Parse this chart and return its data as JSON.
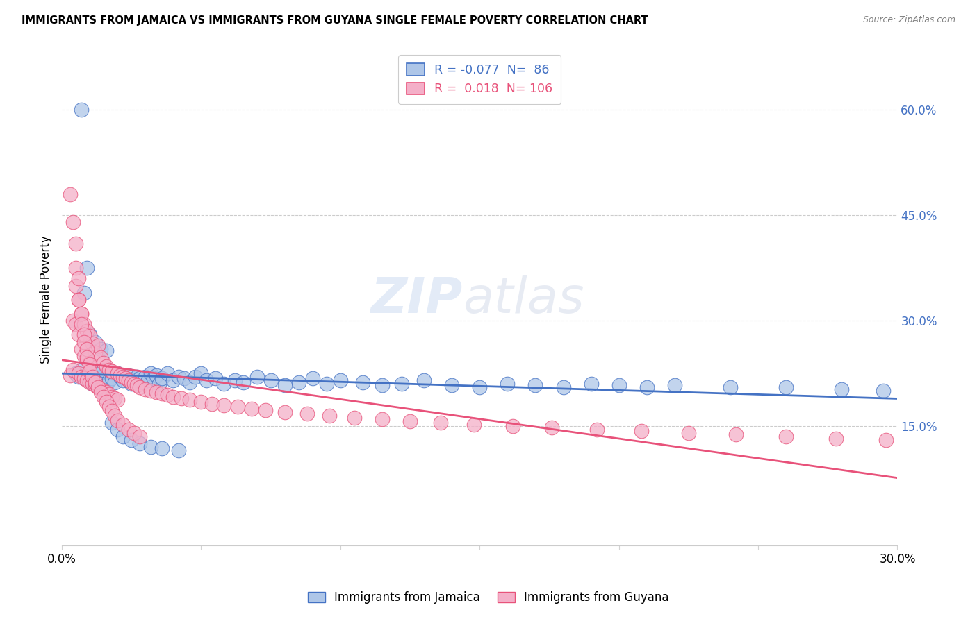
{
  "title": "IMMIGRANTS FROM JAMAICA VS IMMIGRANTS FROM GUYANA SINGLE FEMALE POVERTY CORRELATION CHART",
  "source": "Source: ZipAtlas.com",
  "ylabel": "Single Female Poverty",
  "right_yticks": [
    "60.0%",
    "45.0%",
    "30.0%",
    "15.0%"
  ],
  "right_ytick_vals": [
    0.6,
    0.45,
    0.3,
    0.15
  ],
  "xlim": [
    0.0,
    0.3
  ],
  "ylim": [
    -0.02,
    0.68
  ],
  "legend_jamaica": "Immigrants from Jamaica",
  "legend_guyana": "Immigrants from Guyana",
  "R_jamaica": "-0.077",
  "N_jamaica": "86",
  "R_guyana": "0.018",
  "N_guyana": "106",
  "color_jamaica": "#aec6e8",
  "color_guyana": "#f4afc8",
  "line_jamaica": "#4472c4",
  "line_guyana": "#e8527a",
  "watermark_zip": "ZIP",
  "watermark_atlas": "atlas",
  "jamaica_x": [
    0.005,
    0.006,
    0.007,
    0.008,
    0.009,
    0.01,
    0.01,
    0.011,
    0.012,
    0.012,
    0.013,
    0.014,
    0.015,
    0.015,
    0.016,
    0.017,
    0.018,
    0.019,
    0.02,
    0.021,
    0.022,
    0.023,
    0.024,
    0.025,
    0.026,
    0.027,
    0.028,
    0.029,
    0.03,
    0.031,
    0.032,
    0.033,
    0.034,
    0.035,
    0.036,
    0.038,
    0.04,
    0.042,
    0.044,
    0.046,
    0.048,
    0.05,
    0.052,
    0.055,
    0.058,
    0.062,
    0.065,
    0.07,
    0.075,
    0.08,
    0.085,
    0.09,
    0.095,
    0.1,
    0.108,
    0.115,
    0.122,
    0.13,
    0.14,
    0.15,
    0.16,
    0.17,
    0.18,
    0.19,
    0.2,
    0.21,
    0.22,
    0.24,
    0.26,
    0.28,
    0.295,
    0.007,
    0.008,
    0.009,
    0.01,
    0.012,
    0.014,
    0.016,
    0.018,
    0.02,
    0.022,
    0.025,
    0.028,
    0.032,
    0.036,
    0.042
  ],
  "jamaica_y": [
    0.225,
    0.22,
    0.23,
    0.218,
    0.222,
    0.215,
    0.228,
    0.21,
    0.22,
    0.225,
    0.218,
    0.212,
    0.222,
    0.23,
    0.208,
    0.215,
    0.218,
    0.212,
    0.225,
    0.22,
    0.215,
    0.218,
    0.222,
    0.21,
    0.215,
    0.22,
    0.218,
    0.212,
    0.22,
    0.215,
    0.225,
    0.218,
    0.222,
    0.21,
    0.218,
    0.225,
    0.215,
    0.22,
    0.218,
    0.212,
    0.22,
    0.225,
    0.215,
    0.218,
    0.21,
    0.215,
    0.212,
    0.22,
    0.215,
    0.208,
    0.212,
    0.218,
    0.21,
    0.215,
    0.212,
    0.208,
    0.21,
    0.215,
    0.208,
    0.205,
    0.21,
    0.208,
    0.205,
    0.21,
    0.208,
    0.205,
    0.208,
    0.205,
    0.205,
    0.202,
    0.2,
    0.6,
    0.34,
    0.375,
    0.28,
    0.27,
    0.26,
    0.258,
    0.155,
    0.145,
    0.135,
    0.13,
    0.125,
    0.12,
    0.118,
    0.115
  ],
  "guyana_x": [
    0.003,
    0.004,
    0.004,
    0.005,
    0.005,
    0.006,
    0.006,
    0.006,
    0.007,
    0.007,
    0.007,
    0.008,
    0.008,
    0.008,
    0.009,
    0.009,
    0.009,
    0.01,
    0.01,
    0.01,
    0.011,
    0.011,
    0.012,
    0.012,
    0.013,
    0.013,
    0.014,
    0.014,
    0.015,
    0.015,
    0.016,
    0.016,
    0.017,
    0.017,
    0.018,
    0.018,
    0.019,
    0.02,
    0.02,
    0.021,
    0.022,
    0.023,
    0.024,
    0.025,
    0.026,
    0.027,
    0.028,
    0.03,
    0.032,
    0.034,
    0.036,
    0.038,
    0.04,
    0.043,
    0.046,
    0.05,
    0.054,
    0.058,
    0.063,
    0.068,
    0.073,
    0.08,
    0.088,
    0.096,
    0.105,
    0.115,
    0.125,
    0.136,
    0.148,
    0.162,
    0.176,
    0.192,
    0.208,
    0.225,
    0.242,
    0.26,
    0.278,
    0.296,
    0.003,
    0.004,
    0.005,
    0.005,
    0.006,
    0.006,
    0.007,
    0.007,
    0.008,
    0.008,
    0.009,
    0.009,
    0.01,
    0.01,
    0.011,
    0.012,
    0.013,
    0.014,
    0.015,
    0.016,
    0.017,
    0.018,
    0.019,
    0.02,
    0.022,
    0.024,
    0.026,
    0.028
  ],
  "guyana_y": [
    0.222,
    0.3,
    0.23,
    0.295,
    0.35,
    0.225,
    0.28,
    0.33,
    0.22,
    0.26,
    0.31,
    0.218,
    0.25,
    0.295,
    0.215,
    0.245,
    0.285,
    0.212,
    0.24,
    0.278,
    0.21,
    0.268,
    0.208,
    0.255,
    0.205,
    0.265,
    0.202,
    0.248,
    0.2,
    0.24,
    0.198,
    0.235,
    0.195,
    0.23,
    0.192,
    0.228,
    0.19,
    0.225,
    0.188,
    0.222,
    0.22,
    0.218,
    0.215,
    0.212,
    0.21,
    0.208,
    0.205,
    0.202,
    0.2,
    0.198,
    0.196,
    0.194,
    0.192,
    0.19,
    0.188,
    0.185,
    0.182,
    0.18,
    0.178,
    0.175,
    0.173,
    0.17,
    0.168,
    0.165,
    0.162,
    0.16,
    0.157,
    0.155,
    0.152,
    0.15,
    0.148,
    0.145,
    0.143,
    0.14,
    0.138,
    0.135,
    0.132,
    0.13,
    0.48,
    0.44,
    0.41,
    0.375,
    0.36,
    0.33,
    0.31,
    0.295,
    0.28,
    0.27,
    0.26,
    0.248,
    0.238,
    0.228,
    0.22,
    0.212,
    0.205,
    0.198,
    0.192,
    0.185,
    0.178,
    0.172,
    0.165,
    0.158,
    0.152,
    0.145,
    0.14,
    0.135
  ]
}
